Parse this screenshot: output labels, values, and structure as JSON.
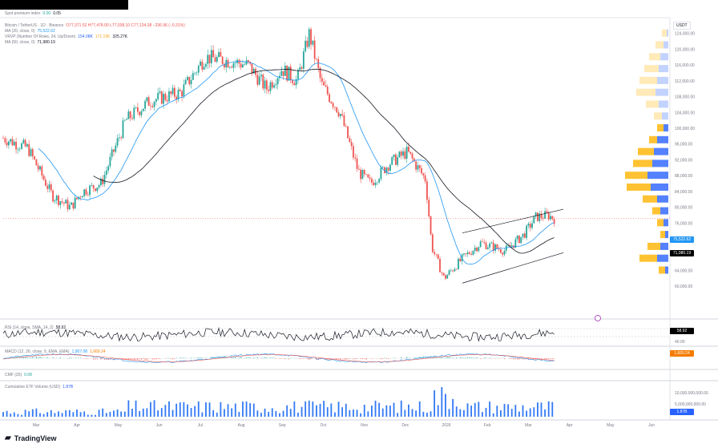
{
  "header": {
    "spot_premium": {
      "label": "Spot premium index",
      "v1": "0.00",
      "v2": "0.05"
    }
  },
  "legend": {
    "symbol": "Bitcoin / TetherUS · 1D · Binance",
    "ohlc": "O77,371.52 H77,478.00 L77,038.10 C77,134.38 −236.96 (−0.31%)",
    "ma20_label": "MA (20, close, 0)",
    "ma20_value": "75,522.62",
    "vpvr_label": "VRVP (Number Of Rows, 24, Up/Down)",
    "vpvr_up": "154.08K",
    "vpvr_down": "171.19K",
    "vpvr_total": "325.27K",
    "ma50_label": "MA (50, close, 0)",
    "ma50_value": "71,980.19",
    "rsi_label": "RSI (14, close, SMA, 14, 2)",
    "rsi_value": "58.92",
    "macd_label": "MACD (12, 26, close, 9, EMA, EMA)",
    "macd_v1": "1,907.08",
    "macd_v2": "1,669.24",
    "cmf_label": "CMF (20)",
    "cmf_value": "0.08",
    "etf_label": "Cumulative ETF Volume (USD)",
    "etf_value": "1.87B"
  },
  "currency": "USDT",
  "brand": "TradingView",
  "colors": {
    "up": "#26a69a",
    "down": "#ef5350",
    "ma20": "#2196f3",
    "ma50": "#131722",
    "vp_up": "#ffc233",
    "vp_down": "#2962ff",
    "etf": "#3179f5",
    "price_label": "#2196f3",
    "last_label": "#000000",
    "macd_label": "#f57c00"
  },
  "chart_data": [
    {
      "type": "candlestick",
      "title": "Bitcoin / TetherUS",
      "ylim": [
        57000,
        128000
      ],
      "y_ticks": [
        "124,000.00",
        "120,000.00",
        "116,000.00",
        "112,000.00",
        "108,000.00",
        "104,000.00",
        "100,000.00",
        "96,000.00",
        "92,000.00",
        "88,000.00",
        "84,000.00",
        "80,000.00",
        "76,000.00",
        "72,000.00",
        "68,000.00",
        "64,000.00",
        "60,000.00"
      ],
      "x_ticks": [
        "Mar",
        "Apr",
        "May",
        "Jun",
        "Jul",
        "Aug",
        "Sep",
        "Oct",
        "Nov",
        "Dec",
        "2026",
        "Feb",
        "Mar",
        "Apr",
        "May",
        "Jun"
      ],
      "close_path": {
        "x": [
          0,
          0.04,
          0.08,
          0.11,
          0.13,
          0.16,
          0.2,
          0.24,
          0.29,
          0.33,
          0.37,
          0.4,
          0.43,
          0.455,
          0.48,
          0.5,
          0.52,
          0.55,
          0.58,
          0.6,
          0.63,
          0.66,
          0.69,
          0.7,
          0.72,
          0.75,
          0.78,
          0.82,
          0.85,
          0.87,
          0.89,
          0.9
        ],
        "y": [
          97500,
          95000,
          83000,
          80000,
          84000,
          86000,
          102000,
          107000,
          109000,
          118000,
          117000,
          116000,
          110000,
          115000,
          112000,
          124000,
          111000,
          104000,
          89000,
          86000,
          91000,
          94000,
          87000,
          70000,
          62000,
          67000,
          71000,
          69000,
          73000,
          77500,
          78000,
          77134
        ]
      },
      "ma20_value": "75,522.62",
      "ma50_value": "71,980.19",
      "last_price": "77,134.38"
    },
    {
      "type": "line",
      "title": "RSI",
      "ylim": [
        20,
        80
      ],
      "y_ticks": [
        "60.00",
        "40.00"
      ],
      "value": "58.92"
    },
    {
      "type": "line",
      "title": "MACD",
      "value": "1,669.24"
    },
    {
      "type": "line",
      "title": "CMF",
      "value": "0.08"
    },
    {
      "type": "bar",
      "title": "Cumulative ETF Volume (USD)",
      "y_ticks": [
        "10,000,000,000.00",
        "5,000,000,000.00"
      ],
      "value": "1.87B"
    }
  ]
}
